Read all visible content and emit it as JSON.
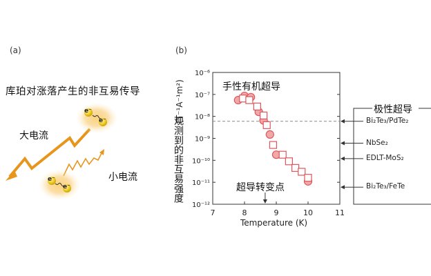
{
  "panel_a": {
    "label": "(a)",
    "title": "库珀对涨落产生的非互易传导",
    "large_current": "大电流",
    "small_current": "小电流",
    "electron": "e⁻"
  },
  "panel_b": {
    "label": "(b)",
    "ylabel_cn": "观测到的非互易强度",
    "ylabel_unit": "(T⁻¹A⁻¹m²)",
    "xlabel": "Temperature (K)",
    "chiral_label": "手性有机超导",
    "transition_label": "超导转变点",
    "polar_box_title": "极性超导",
    "polar_items": [
      {
        "label": "Bi₂Te₃/PdTe₂",
        "value": 6e-09
      },
      {
        "label": "NbSe₂",
        "value": 6e-10
      },
      {
        "label": "EDLT-MoS₂",
        "value": 1.2e-10
      },
      {
        "label": "Bi₂Te₃/FeTe",
        "value": 6e-12
      }
    ]
  },
  "chart_data": {
    "type": "scatter",
    "xlabel": "Temperature (K)",
    "ylabel": "观测到的非互易强度 (T⁻¹A⁻¹m²)",
    "xlim": [
      7,
      11
    ],
    "ylim_log10": [
      -12,
      -6
    ],
    "x_ticks": [
      7,
      8,
      9,
      10,
      11
    ],
    "y_ticks": [
      "10⁻¹²",
      "10⁻¹¹",
      "10⁻¹⁰",
      "10⁻⁹",
      "10⁻⁸",
      "10⁻⁷",
      "10⁻⁶"
    ],
    "y_scale": "log",
    "reference_line": 6e-09,
    "transition_temperature": 8.65,
    "color": "#e0555b",
    "series": [
      {
        "marker": "circle-filled",
        "points": [
          [
            7.8,
            5.5e-08
          ],
          [
            8.0,
            8.5e-08
          ],
          [
            8.2,
            7.5e-08
          ],
          [
            8.45,
            1.6e-08
          ],
          [
            8.6,
            6.5e-09
          ],
          [
            8.8,
            1.5e-09
          ],
          [
            9.0,
            1.8e-10
          ],
          [
            10.0,
            1.1e-11
          ]
        ]
      },
      {
        "marker": "square-open",
        "points": [
          [
            7.95,
            6.5e-08
          ],
          [
            8.15,
            5.5e-08
          ],
          [
            8.4,
            2.8e-08
          ],
          [
            8.6,
            1.1e-08
          ],
          [
            8.7,
            4e-09
          ],
          [
            8.9,
            5e-10
          ],
          [
            9.2,
            1.8e-10
          ],
          [
            9.4,
            9e-11
          ],
          [
            9.6,
            4.5e-11
          ],
          [
            9.8,
            3e-11
          ],
          [
            10.0,
            1.6e-11
          ]
        ]
      }
    ]
  }
}
